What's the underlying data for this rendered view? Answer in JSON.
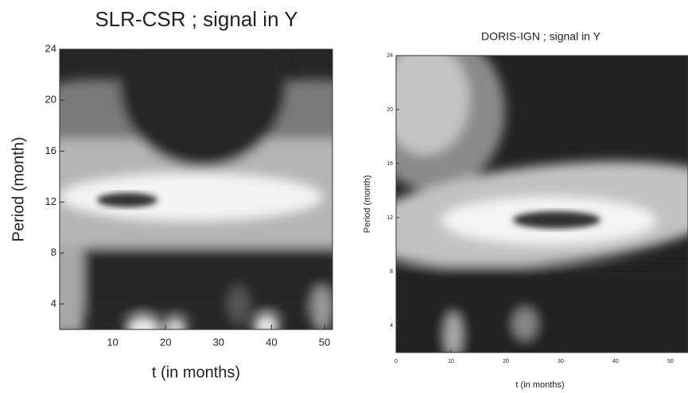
{
  "chart_data": [
    {
      "type": "contour",
      "title": "SLR-CSR ; signal in Y",
      "xlabel": "t (in months)",
      "ylabel": "Period (month)",
      "xlim": [
        0,
        51.5
      ],
      "ylim": [
        2,
        24
      ],
      "xticks": [
        10,
        20,
        30,
        40,
        50
      ],
      "yticks": [
        4,
        8,
        12,
        16,
        20,
        24
      ]
    },
    {
      "type": "contour",
      "title": "DORIS-IGN ; signal in Y",
      "xlabel": "t (in months)",
      "ylabel": "Period (month)",
      "xlim": [
        0,
        53.2
      ],
      "ylim": [
        2,
        24
      ],
      "xticks": [
        0,
        10,
        20,
        30,
        40,
        50
      ],
      "yticks": [
        4,
        8,
        12,
        16,
        20,
        24
      ]
    }
  ]
}
